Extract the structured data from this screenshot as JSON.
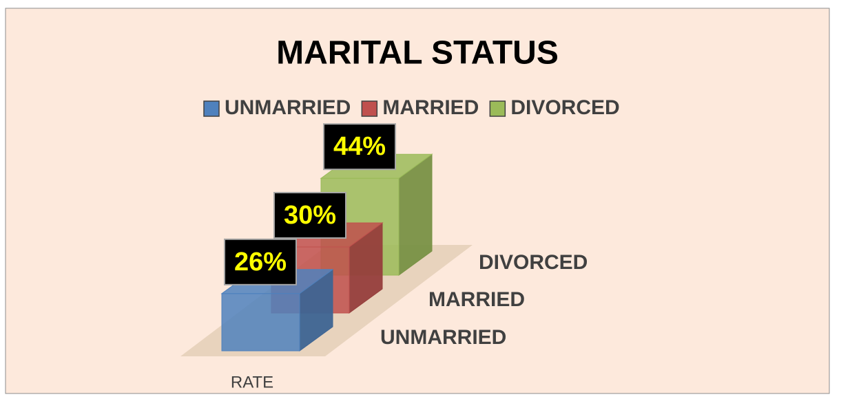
{
  "chart_data": {
    "type": "bar3d",
    "title": "MARITAL STATUS",
    "categories": [
      "RATE"
    ],
    "series": [
      {
        "name": "UNMARRIED",
        "color": "#4f81bd",
        "values": [
          26
        ],
        "value_labels": [
          "26%"
        ]
      },
      {
        "name": "MARRIED",
        "color": "#c0504d",
        "values": [
          30
        ],
        "value_labels": [
          "30%"
        ]
      },
      {
        "name": "DIVORCED",
        "color": "#9bbb59",
        "values": [
          44
        ],
        "value_labels": [
          "44%"
        ]
      }
    ],
    "legend": "top"
  }
}
